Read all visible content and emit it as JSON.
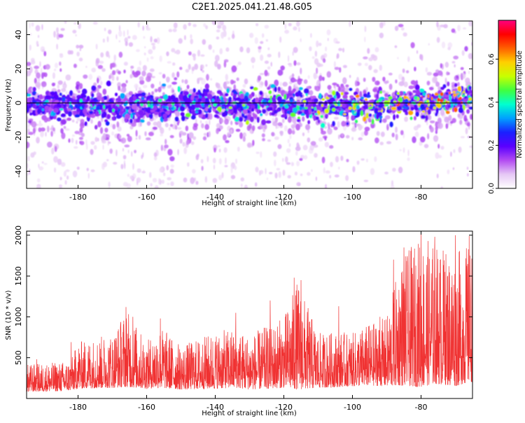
{
  "title": "C2E1.2025.041.21.48.G05",
  "colors": {
    "snr_line": "#f03232",
    "zero_line": "#000000",
    "colormap": [
      "#ffffff",
      "#e6c8f5",
      "#b34cf2",
      "#5a00ff",
      "#1a20ff",
      "#00a0ff",
      "#00ffd0",
      "#40ff40",
      "#c8ff00",
      "#ffd000",
      "#ff6000",
      "#ff0000",
      "#ff0080"
    ]
  },
  "chart_data": [
    {
      "type": "heatmap",
      "xlabel": "Height of straight line (km)",
      "ylabel": "Frequency (Hz)",
      "xlim": [
        -195,
        -65
      ],
      "ylim": [
        -50,
        48
      ],
      "x_ticks": [
        -180,
        -160,
        -140,
        -120,
        -100,
        -80
      ],
      "y_ticks": [
        -40,
        -20,
        0,
        20,
        40
      ],
      "zero_line": true,
      "colorbar": {
        "label": "Normalized spectral amplitude",
        "range": [
          0,
          0.78
        ],
        "ticks": [
          0.0,
          0.2,
          0.4,
          0.6
        ]
      },
      "description_trend": {
        "center_hz": [
          [
            -195,
            -1
          ],
          [
            -160,
            -3
          ],
          [
            -140,
            0
          ],
          [
            -120,
            -1
          ],
          [
            -100,
            -2
          ],
          [
            -80,
            0
          ],
          [
            -66,
            4
          ]
        ],
        "band_halfwidth_hz": 7
      }
    },
    {
      "type": "line",
      "xlabel": "Height of straight line (km)",
      "ylabel": "SNR (10 * v/v)",
      "xlim": [
        -195,
        -65
      ],
      "ylim": [
        0,
        2050
      ],
      "x_ticks": [
        -180,
        -160,
        -140,
        -120,
        -100,
        -80
      ],
      "y_ticks": [
        500,
        1000,
        1500,
        2000
      ],
      "series": [
        {
          "envelope": {
            "x": [
              -195,
              -185,
              -182,
              -180,
              -170,
              -166,
              -160,
              -156,
              -150,
              -140,
              -134,
              -130,
              -120,
              -116,
              -110,
              -104,
              -100,
              -96,
              -90,
              -86,
              -80,
              -76,
              -70,
              -66
            ],
            "low": [
              80,
              90,
              100,
              120,
              130,
              140,
              120,
              130,
              110,
              120,
              130,
              110,
              130,
              110,
              130,
              140,
              150,
              160,
              150,
              160,
              140,
              180,
              150,
              200
            ],
            "high": [
              420,
              450,
              480,
              700,
              800,
              1100,
              700,
              900,
              650,
              820,
              860,
              780,
              1000,
              1450,
              800,
              820,
              800,
              900,
              1000,
              1700,
              2000,
              1900,
              1800,
              1900
            ]
          },
          "peaks": [
            [
              -192,
              480
            ],
            [
              -182,
              690
            ],
            [
              -166,
              1120
            ],
            [
              -164,
              1000
            ],
            [
              -156,
              980
            ],
            [
              -134,
              1050
            ],
            [
              -124,
              1200
            ],
            [
              -117,
              1480
            ],
            [
              -115,
              1450
            ],
            [
              -104,
              1130
            ],
            [
              -92,
              1000
            ],
            [
              -88,
              1700
            ],
            [
              -85,
              1850
            ],
            [
              -80,
              2050
            ],
            [
              -76,
              1980
            ],
            [
              -73,
              1550
            ],
            [
              -70,
              2000
            ],
            [
              -66,
              1990
            ]
          ]
        }
      ]
    }
  ]
}
